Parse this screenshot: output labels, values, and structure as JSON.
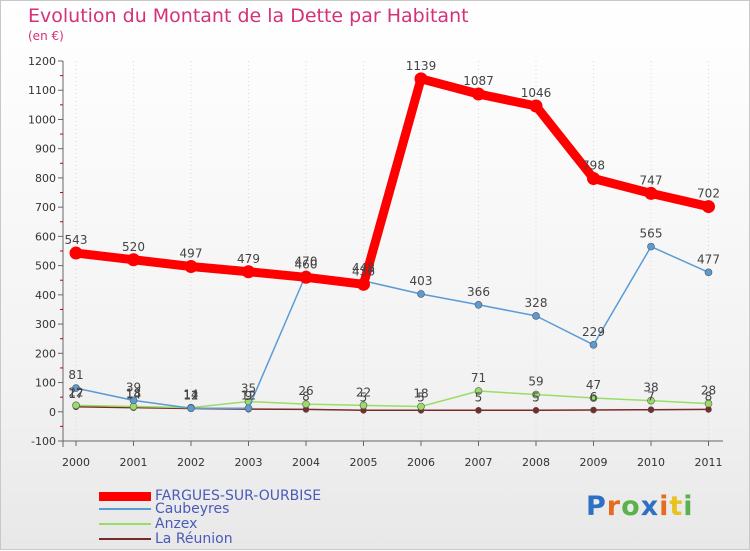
{
  "chart_data": {
    "type": "line",
    "title": "Evolution du Montant de la Dette par Habitant",
    "subtitle": "(en €)",
    "x": [
      "2000",
      "2001",
      "2002",
      "2003",
      "2004",
      "2005",
      "2006",
      "2007",
      "2008",
      "2009",
      "2010",
      "2011"
    ],
    "ylim": [
      -100,
      1200
    ],
    "yticks": [
      "-100",
      "0",
      "100",
      "200",
      "300",
      "400",
      "500",
      "600",
      "700",
      "800",
      "900",
      "1000",
      "1100",
      "1200"
    ],
    "grid": "vertical-dotted",
    "legend_position": "bottom-left",
    "series": [
      {
        "name": "FARGUES-SUR-OURBISE",
        "color": "#ff0000",
        "values": [
          543,
          520,
          497,
          479,
          460,
          436,
          1139,
          1087,
          1046,
          798,
          747,
          702
        ],
        "labels": [
          "543",
          "520",
          "497",
          "479",
          "460",
          "436",
          "1139",
          "1087",
          "1046",
          "798",
          "747",
          "702"
        ]
      },
      {
        "name": "Caubeyres",
        "color": "#5b9bd5",
        "values": [
          81,
          39,
          12,
          12,
          470,
          448,
          403,
          366,
          328,
          229,
          565,
          477
        ],
        "labels": [
          "81",
          "39",
          "12",
          "12",
          "470",
          "448",
          "403",
          "366",
          "328",
          "229",
          "565",
          "477"
        ]
      },
      {
        "name": "Anzex",
        "color": "#99dd66",
        "values": [
          22,
          18,
          14,
          35,
          26,
          22,
          18,
          71,
          59,
          47,
          38,
          28
        ],
        "labels": [
          "22",
          "18",
          "14",
          "35",
          "26",
          "22",
          "18",
          "71",
          "59",
          "47",
          "38",
          "28"
        ]
      },
      {
        "name": "La Réunion",
        "color": "#7a2a2a",
        "values": [
          17,
          14,
          11,
          9,
          8,
          5,
          5,
          5,
          5,
          6,
          7,
          8
        ],
        "labels": [
          "17",
          "14",
          "11",
          "9",
          "8",
          "5",
          "5",
          "5",
          "5",
          "6",
          "7",
          "8"
        ]
      }
    ]
  },
  "logo": {
    "text": "Proxiti",
    "chars": [
      "P",
      "r",
      "o",
      "x",
      "i",
      "t",
      "i"
    ],
    "colors": [
      "#2f6fc4",
      "#e86a1e",
      "#5bb14a",
      "#2f6fc4",
      "#e86a1e",
      "#e8c21e",
      "#5bb14a"
    ]
  }
}
